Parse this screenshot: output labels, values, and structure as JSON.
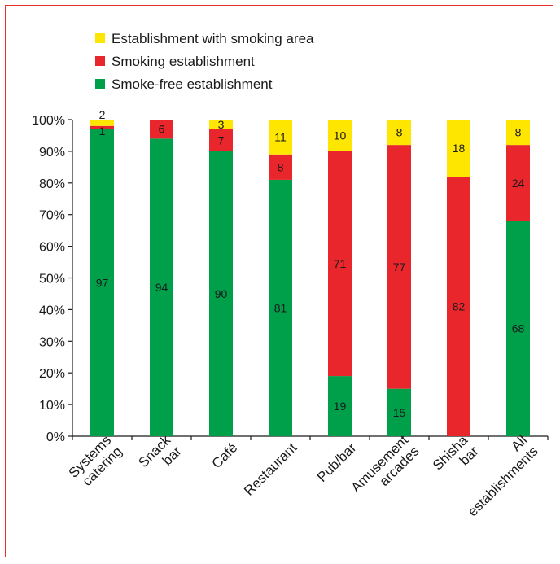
{
  "chart_data": {
    "type": "bar",
    "stacked": true,
    "percent": true,
    "categories": [
      [
        "Systems",
        "catering"
      ],
      [
        "Snack",
        "bar"
      ],
      [
        "Café"
      ],
      [
        "Restaurant"
      ],
      [
        "Pub/bar"
      ],
      [
        "Amusement",
        "arcades"
      ],
      [
        "Shisha",
        "bar"
      ],
      [
        "All",
        "establishments"
      ]
    ],
    "series": [
      {
        "name": "Smoke-free establishment",
        "color": "#00a04a",
        "values": [
          97,
          94,
          90,
          81,
          19,
          15,
          0,
          68
        ]
      },
      {
        "name": "Smoking establishment",
        "color": "#e8262b",
        "values": [
          1,
          6,
          7,
          8,
          71,
          77,
          82,
          24
        ]
      },
      {
        "name": "Establishment with smoking area",
        "color": "#ffe600",
        "values": [
          2,
          0,
          3,
          11,
          10,
          8,
          18,
          8
        ]
      }
    ],
    "legend_order": [
      "Establishment with smoking area",
      "Smoking establishment",
      "Smoke-free establishment"
    ],
    "y_ticks": [
      "0%",
      "10%",
      "20%",
      "30%",
      "40%",
      "50%",
      "60%",
      "70%",
      "80%",
      "90%",
      "100%"
    ],
    "ylim": [
      0,
      100
    ],
    "legend_position": "top-left",
    "grid": false,
    "title": "",
    "xlabel": "",
    "ylabel": ""
  }
}
